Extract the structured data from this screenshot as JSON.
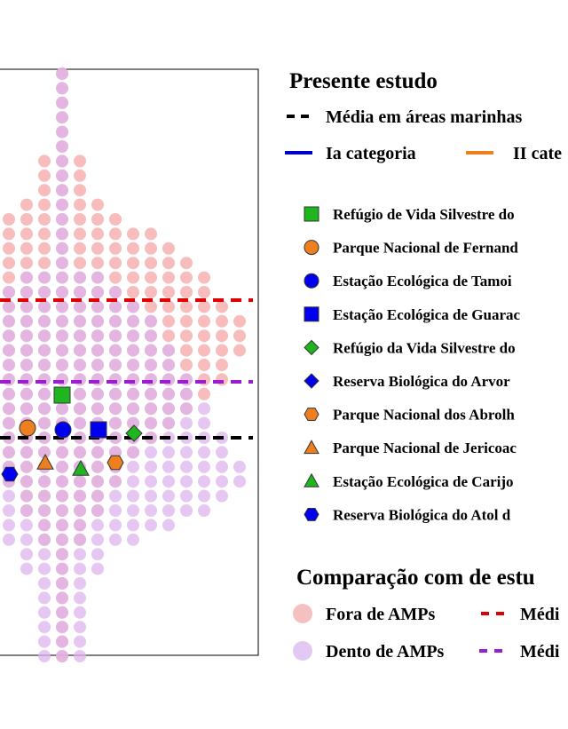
{
  "chart_data": {
    "type": "scatter",
    "subtype": "beeswarm",
    "legend_title_1": "Presente estudo",
    "mean_line_label": "Média em áreas marinhas",
    "category_lines": [
      {
        "label": "Ia categoria",
        "color": "#0000cc"
      },
      {
        "label": "II cate",
        "color": "#ee7f1f"
      }
    ],
    "sites": [
      {
        "label": "Refúgio de Vida Silvestre do",
        "shape": "square",
        "color": "#1fb51f"
      },
      {
        "label": "Parque Nacional de Fernand",
        "shape": "circle",
        "color": "#ee7f1f"
      },
      {
        "label": "Estação Ecológica de Tamoi",
        "shape": "circle",
        "color": "#0000ee"
      },
      {
        "label": "Estação Ecológica de Guarac",
        "shape": "square",
        "color": "#0000ee"
      },
      {
        "label": "Refúgio da Vida Silvestre do",
        "shape": "diamond",
        "color": "#1fb51f"
      },
      {
        "label": "Reserva Biológica do Arvor",
        "shape": "diamond",
        "color": "#0000ee"
      },
      {
        "label": "Parque Nacional dos Abrolh",
        "shape": "hexagon",
        "color": "#ee7f1f"
      },
      {
        "label": "Parque Nacional de Jericoac",
        "shape": "triangle",
        "color": "#ee7f1f"
      },
      {
        "label": "Estação  Ecológica de Carijo",
        "shape": "triangle",
        "color": "#1fb51f"
      },
      {
        "label": "Reserva Biológica do Atol d",
        "shape": "hexagon",
        "color": "#0000ee"
      }
    ],
    "legend_title_2": "Comparação com de estu",
    "comparison": [
      {
        "label": "Fora de AMPs",
        "color": "#f4a6a6",
        "mean_label": "Médi",
        "mean_color": "#e00000"
      },
      {
        "label": "Dento de AMPs",
        "color": "#dcb4ee",
        "mean_label": "Médi",
        "mean_color": "#9a1ed0"
      }
    ],
    "mean_line_color": "#000000",
    "fora_row_halfwidths": [
      0,
      0,
      0,
      0,
      0,
      0,
      1,
      1,
      1,
      2,
      3,
      5,
      6,
      7,
      8,
      8,
      9,
      10,
      10,
      10,
      9,
      9,
      8,
      7,
      6,
      5,
      4,
      3,
      3,
      2,
      2,
      1,
      1,
      0,
      0,
      0,
      0,
      0,
      0,
      0,
      0
    ],
    "dento_row_halfwidths": [
      0,
      0,
      0,
      0,
      0,
      0,
      0,
      0,
      0,
      0,
      0,
      0,
      0,
      0,
      2,
      3,
      4,
      5,
      5,
      6,
      6,
      7,
      7,
      8,
      8,
      9,
      9,
      10,
      10,
      9,
      8,
      6,
      4,
      2,
      2,
      1,
      1,
      1,
      1,
      1,
      1
    ]
  }
}
